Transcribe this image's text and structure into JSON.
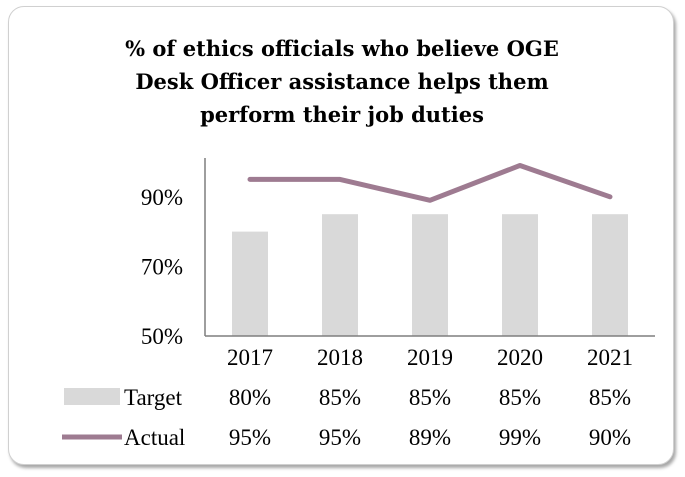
{
  "chart_data": {
    "type": "bar",
    "title": "% of ethics officials  who believe OGE Desk Officer assistance helps them perform their job duties",
    "title_lines": [
      "% of ethics officials  who believe OGE",
      "Desk Officer assistance helps them",
      "perform their job duties"
    ],
    "categories": [
      "2017",
      "2018",
      "2019",
      "2020",
      "2021"
    ],
    "series": [
      {
        "name": "Target",
        "kind": "bar",
        "color": "#d9d9d9",
        "values": [
          80,
          85,
          85,
          85,
          85
        ],
        "labels": [
          "80%",
          "85%",
          "85%",
          "85%",
          "85%"
        ]
      },
      {
        "name": "Actual",
        "kind": "line",
        "color": "#9e7b91",
        "values": [
          95,
          95,
          89,
          99,
          90
        ],
        "labels": [
          "95%",
          "95%",
          "89%",
          "99%",
          "90%"
        ]
      }
    ],
    "ylim": [
      50,
      100
    ],
    "yticks": [
      50,
      70,
      90
    ],
    "ytick_labels": [
      "50%",
      "70%",
      "90%"
    ],
    "grid": false,
    "legend": "data-table-below"
  }
}
